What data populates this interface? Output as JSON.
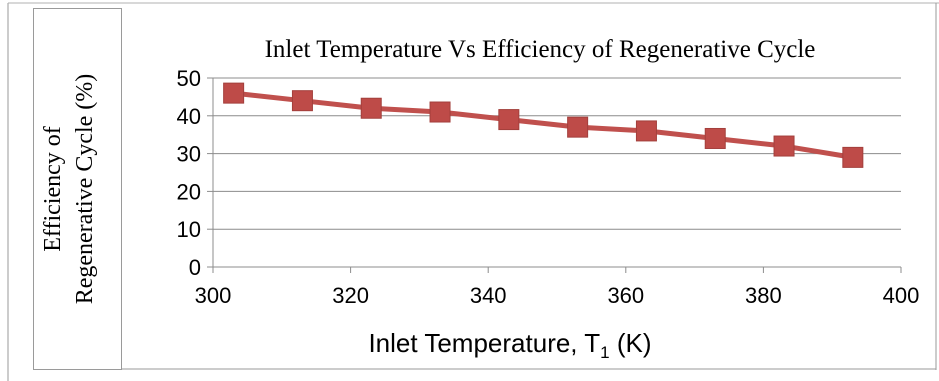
{
  "chart_data": {
    "type": "line",
    "title": "Inlet Temperature Vs Efficiency of Regenerative Cycle",
    "ylabel_line1": "Efficiency of",
    "ylabel_line2": "Regenerative Cycle (%)",
    "xlabel_main": "Inlet Temperature, T",
    "xlabel_sub": "1",
    "xlabel_unit": " (K)",
    "xlim": [
      300,
      400
    ],
    "ylim": [
      0,
      50
    ],
    "xticks": [
      300,
      320,
      340,
      360,
      380,
      400
    ],
    "yticks": [
      0,
      10,
      20,
      30,
      40,
      50
    ],
    "grid": true,
    "series_color": "#c0504d",
    "marker_color": "#be4b48",
    "series": [
      {
        "x": [
          303,
          313,
          323,
          333,
          343,
          353,
          363,
          373,
          383,
          393
        ],
        "y": [
          46,
          44,
          42,
          41,
          39,
          37,
          36,
          34,
          32,
          29
        ]
      }
    ]
  }
}
